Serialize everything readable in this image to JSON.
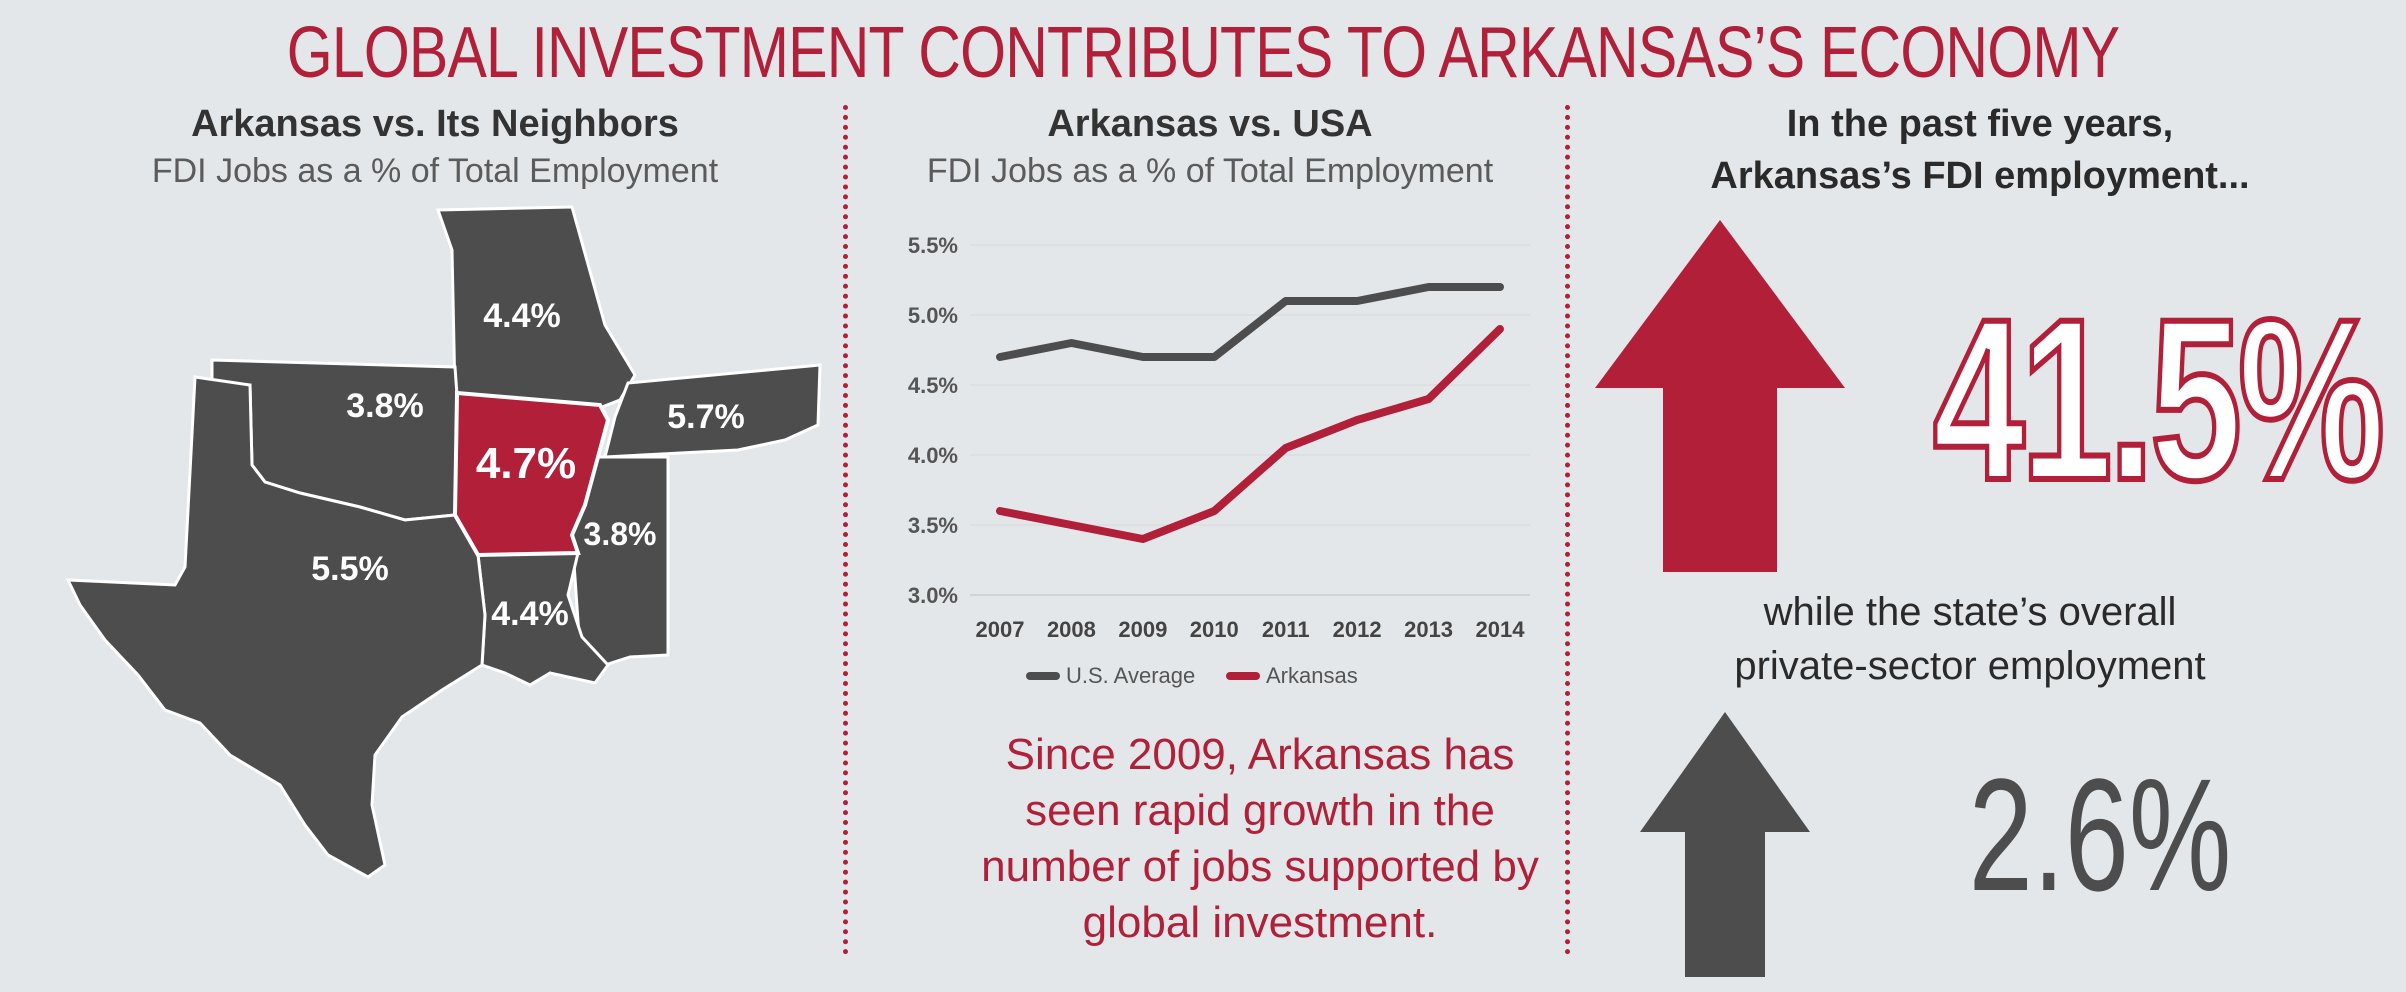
{
  "title": "GLOBAL INVESTMENT CONTRIBUTES TO ARKANSAS’S ECONOMY",
  "colors": {
    "accent": "#b11f38",
    "dark": "#4d4d4d",
    "background": "#e3e7ea"
  },
  "map_panel": {
    "title": "Arkansas vs. Its Neighbors",
    "subtitle": "FDI Jobs as a % of Total Employment",
    "states": [
      {
        "label": "4.4%",
        "highlight": false
      },
      {
        "label": "3.8%",
        "highlight": false
      },
      {
        "label": "4.7%",
        "highlight": true
      },
      {
        "label": "5.7%",
        "highlight": false
      },
      {
        "label": "3.8%",
        "highlight": false
      },
      {
        "label": "5.5%",
        "highlight": false
      },
      {
        "label": "4.4%",
        "highlight": false
      }
    ]
  },
  "chart_panel": {
    "title": "Arkansas vs. USA",
    "subtitle": "FDI Jobs as a % of Total Employment",
    "caption_lines": [
      "Since 2009, Arkansas has",
      "seen rapid growth in the",
      "number of jobs supported by",
      "global investment."
    ]
  },
  "chart_data": {
    "type": "line",
    "title": "Arkansas vs. USA",
    "subtitle": "FDI Jobs as a % of Total Employment",
    "x": [
      "2007",
      "2008",
      "2009",
      "2010",
      "2011",
      "2012",
      "2013",
      "2014"
    ],
    "ylim": [
      3.0,
      5.5
    ],
    "yticks": [
      "3.0%",
      "3.5%",
      "4.0%",
      "4.5%",
      "5.0%",
      "5.5%"
    ],
    "grid": true,
    "legend_position": "bottom",
    "series": [
      {
        "name": "U.S. Average",
        "color": "#4d4d4d",
        "values": [
          4.7,
          4.8,
          4.7,
          4.7,
          5.1,
          5.1,
          5.2,
          5.2
        ]
      },
      {
        "name": "Arkansas",
        "color": "#b11f38",
        "values": [
          3.6,
          3.5,
          3.4,
          3.6,
          4.05,
          4.25,
          4.4,
          4.9
        ]
      }
    ]
  },
  "growth_panel": {
    "heading_lines": [
      "In the past five years,",
      "Arkansas’s FDI employment..."
    ],
    "fdi_growth": "41.5%",
    "while_lines": [
      "while the state’s overall",
      "private-sector employment"
    ],
    "overall_growth": "2.6%",
    "icons": [
      "up-arrow-red-icon",
      "up-arrow-gray-icon"
    ]
  }
}
